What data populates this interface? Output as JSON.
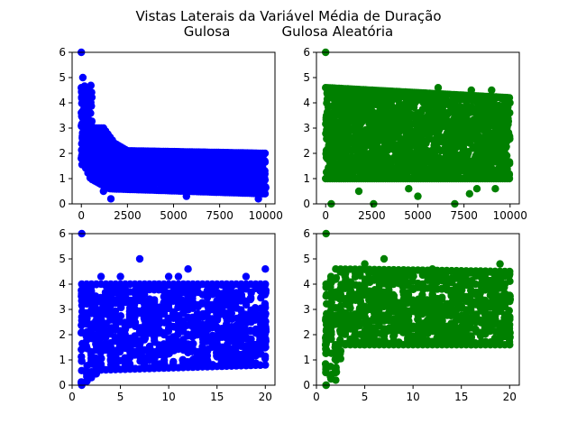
{
  "figure": {
    "title_line1": "Vistas Laterais da Variável Média de Duração",
    "title_line2": "Gulosa            Gulosa Aleatória"
  },
  "chart_data": [
    {
      "type": "scatter",
      "panel": "top-left",
      "color": "#0000ff",
      "xlim": [
        -500,
        10500
      ],
      "ylim": [
        0,
        6
      ],
      "xticks": [
        0,
        2500,
        5000,
        7500,
        10000
      ],
      "yticks": [
        0,
        1,
        2,
        3,
        4,
        5,
        6
      ],
      "grid": false,
      "profile": "decay",
      "x_range": [
        0,
        10000
      ],
      "band_upper": [
        [
          0,
          4.6
        ],
        [
          200,
          3.6
        ],
        [
          500,
          3.0
        ],
        [
          1200,
          3.0
        ],
        [
          1800,
          2.4
        ],
        [
          2500,
          2.1
        ],
        [
          10000,
          2.0
        ]
      ],
      "band_lower": [
        [
          0,
          1.8
        ],
        [
          500,
          1.0
        ],
        [
          1500,
          0.6
        ],
        [
          10000,
          0.4
        ]
      ],
      "outliers": [
        [
          0,
          6.0
        ],
        [
          80,
          5.0
        ],
        [
          200,
          4.0
        ],
        [
          1200,
          0.5
        ],
        [
          1600,
          0.2
        ],
        [
          5700,
          0.3
        ],
        [
          9600,
          0.2
        ]
      ]
    },
    {
      "type": "scatter",
      "panel": "top-right",
      "color": "#008000",
      "xlim": [
        -500,
        10500
      ],
      "ylim": [
        0,
        6
      ],
      "xticks": [
        0,
        2500,
        5000,
        7500,
        10000
      ],
      "yticks": [
        0,
        1,
        2,
        3,
        4,
        5,
        6
      ],
      "grid": false,
      "profile": "band",
      "x_range": [
        0,
        10000
      ],
      "band_upper": [
        [
          0,
          4.6
        ],
        [
          10000,
          4.2
        ]
      ],
      "band_lower": [
        [
          0,
          1.0
        ],
        [
          10000,
          1.0
        ]
      ],
      "outliers": [
        [
          0,
          6.0
        ],
        [
          300,
          0.0
        ],
        [
          1800,
          0.5
        ],
        [
          4500,
          0.6
        ],
        [
          5000,
          0.3
        ],
        [
          7800,
          0.4
        ],
        [
          8200,
          0.6
        ],
        [
          9200,
          0.6
        ],
        [
          6100,
          4.6
        ],
        [
          9000,
          4.5
        ],
        [
          7900,
          4.5
        ],
        [
          2600,
          0.0
        ],
        [
          7000,
          0.0
        ]
      ]
    },
    {
      "type": "scatter",
      "panel": "bottom-left",
      "color": "#0000ff",
      "xlim": [
        0,
        21
      ],
      "ylim": [
        0,
        6
      ],
      "xticks": [
        0,
        5,
        10,
        15,
        20
      ],
      "yticks": [
        0,
        1,
        2,
        3,
        4,
        5,
        6
      ],
      "grid": false,
      "profile": "columns",
      "x_columns": [
        1,
        1.5,
        2,
        2.5,
        3,
        3.5,
        4,
        4.5,
        5,
        5.5,
        6,
        6.5,
        7,
        7.5,
        8,
        8.5,
        9,
        9.5,
        10,
        10.5,
        11,
        11.5,
        12,
        12.5,
        13,
        13.5,
        14,
        14.5,
        15,
        15.5,
        16,
        16.5,
        17,
        17.5,
        18,
        18.5,
        19,
        19.5,
        20
      ],
      "band_lower": [
        [
          1,
          0.0
        ],
        [
          3,
          0.6
        ],
        [
          20,
          0.8
        ]
      ],
      "band_upper": [
        [
          1,
          4.0
        ],
        [
          3,
          4.0
        ],
        [
          20,
          4.0
        ]
      ],
      "outliers": [
        [
          1,
          6.0
        ],
        [
          7,
          5.0
        ],
        [
          12,
          4.6
        ],
        [
          11,
          4.3
        ],
        [
          18,
          4.3
        ],
        [
          20,
          4.6
        ],
        [
          3,
          4.3
        ],
        [
          5,
          4.3
        ],
        [
          10,
          4.3
        ]
      ]
    },
    {
      "type": "scatter",
      "panel": "bottom-right",
      "color": "#008000",
      "xlim": [
        0,
        21
      ],
      "ylim": [
        0,
        6
      ],
      "xticks": [
        0,
        5,
        10,
        15,
        20
      ],
      "yticks": [
        0,
        1,
        2,
        3,
        4,
        5,
        6
      ],
      "grid": false,
      "profile": "columns",
      "x_columns": [
        1,
        1.5,
        2,
        2.5,
        3,
        3.5,
        4,
        4.5,
        5,
        5.5,
        6,
        6.5,
        7,
        7.5,
        8,
        8.5,
        9,
        9.5,
        10,
        10.5,
        11,
        11.5,
        12,
        12.5,
        13,
        13.5,
        14,
        14.5,
        15,
        15.5,
        16,
        16.5,
        17,
        17.5,
        18,
        18.5,
        19,
        19.5,
        20
      ],
      "band_lower": [
        [
          1,
          0.0
        ],
        [
          2,
          0.5
        ],
        [
          3,
          1.6
        ],
        [
          20,
          1.6
        ]
      ],
      "band_upper": [
        [
          1,
          4.0
        ],
        [
          2,
          4.6
        ],
        [
          20,
          4.5
        ]
      ],
      "outliers": [
        [
          1,
          6.0
        ],
        [
          7,
          5.0
        ],
        [
          5,
          4.8
        ],
        [
          19,
          4.8
        ],
        [
          12,
          4.6
        ],
        [
          2,
          0.2
        ],
        [
          1,
          0.0
        ]
      ]
    }
  ]
}
